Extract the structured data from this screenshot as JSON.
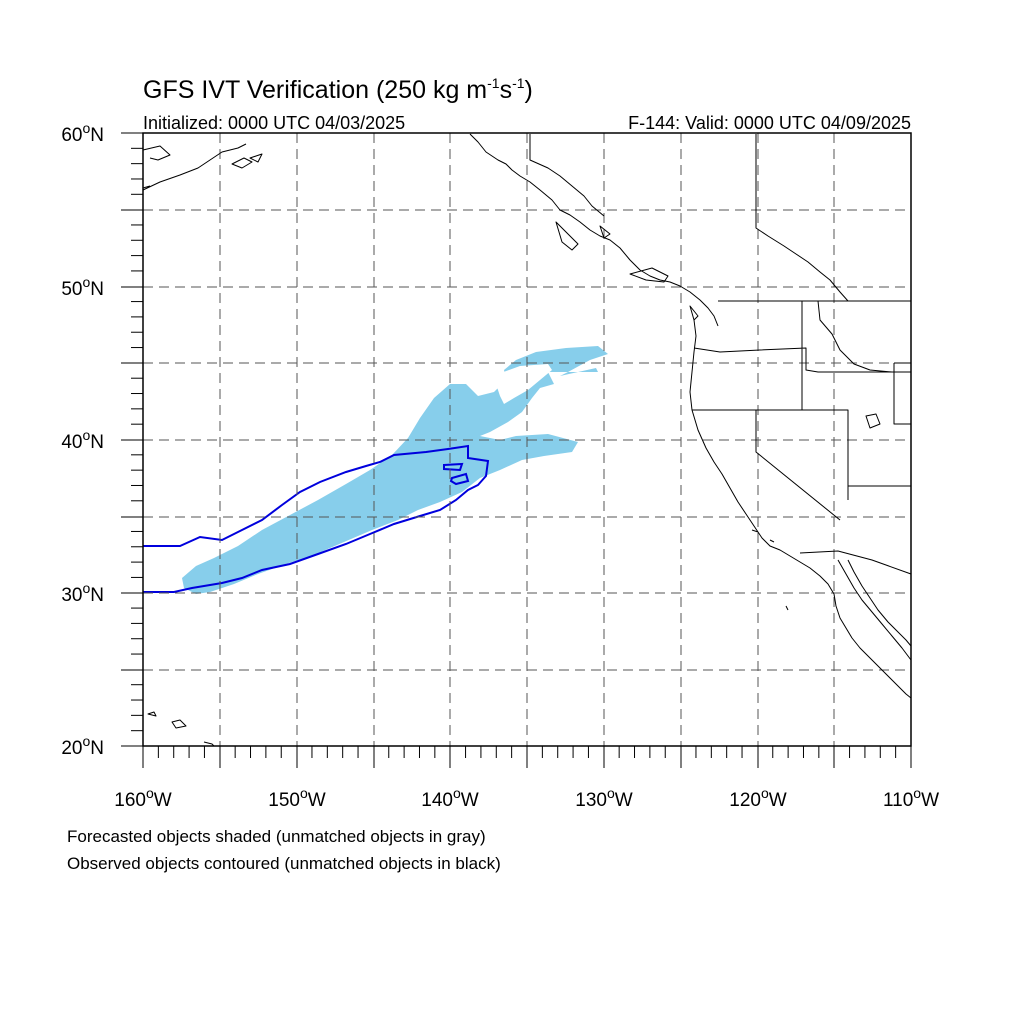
{
  "title": {
    "main": "GFS IVT Verification (250 kg m",
    "exp1": "-1",
    "mid": "s",
    "exp2": "-1",
    "close": ")"
  },
  "initialized": "Initialized: 0000 UTC 04/03/2025",
  "valid": "F-144: Valid: 0000 UTC 04/09/2025",
  "lat_labels": [
    "60",
    "50",
    "40",
    "30",
    "20"
  ],
  "lat_suffix": "N",
  "lon_labels": [
    "160",
    "150",
    "140",
    "130",
    "120",
    "110"
  ],
  "lon_suffix": "W",
  "captions": [
    "Forecasted objects shaded (unmatched objects in gray)",
    "Observed objects contoured (unmatched objects in black)"
  ],
  "map_extent": {
    "lon_min": -160,
    "lon_max": -110,
    "lat_min": 20,
    "lat_max": 60
  },
  "colors": {
    "forecast_fill": "#87ceeb",
    "observed_contour": "#0000dd",
    "coastline": "#000000",
    "grid": "#555555"
  }
}
